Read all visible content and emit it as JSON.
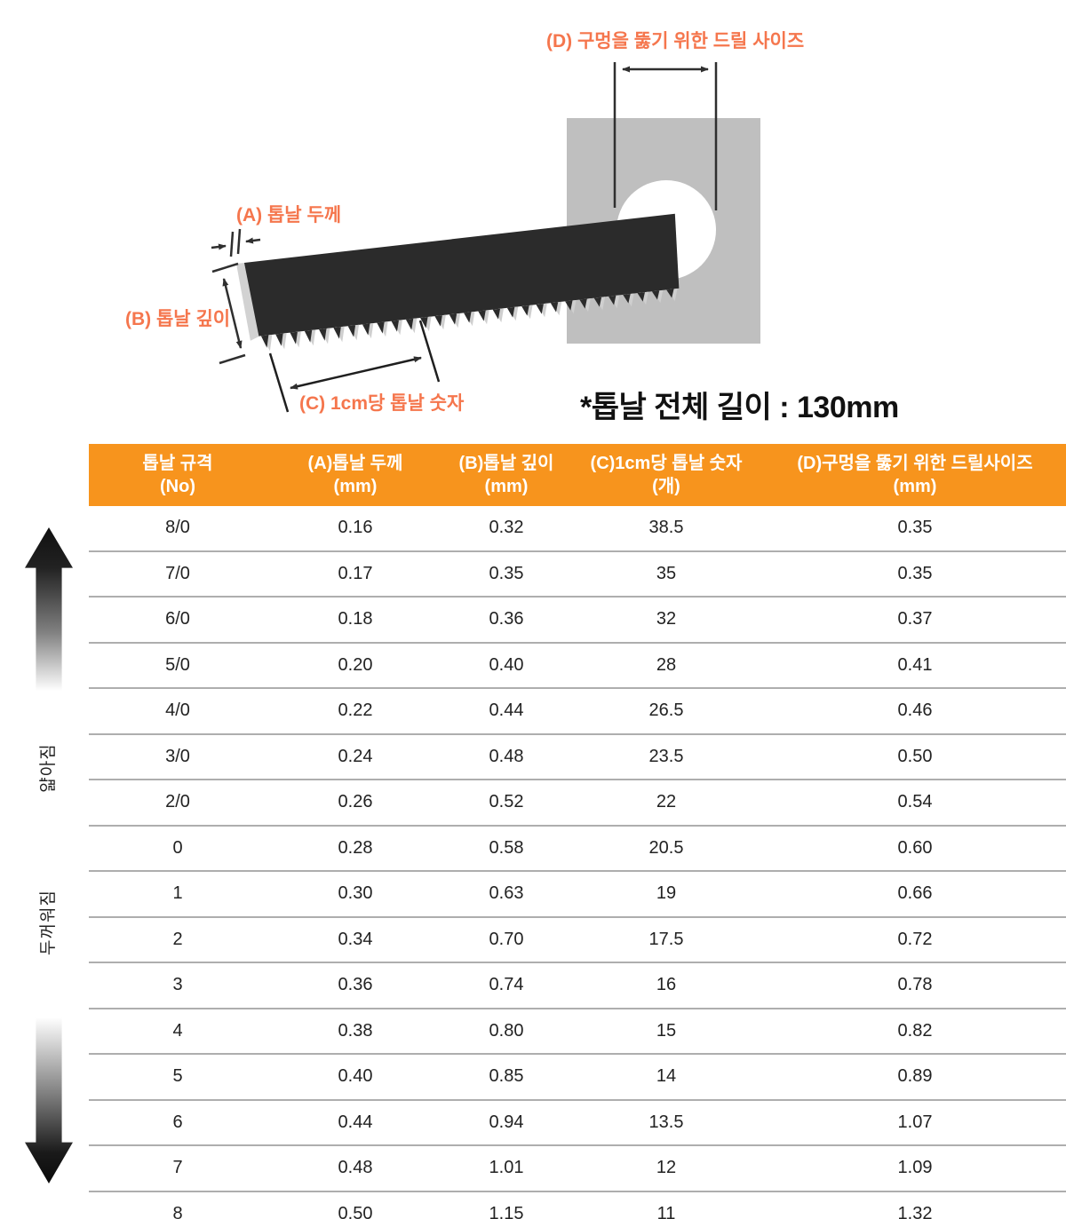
{
  "diagram": {
    "labels": {
      "a": "(A) 톱날 두께",
      "b": "(B) 톱날 깊이",
      "c": "(C) 1cm당 톱날 숫자",
      "d": "(D) 구멍을 뚫기 위한 드릴 사이즈"
    },
    "total_length_note": "*톱날 전체 길이 : 130mm"
  },
  "side_labels": {
    "thinner": "얇아짐",
    "thicker": "두꺼워짐"
  },
  "colors": {
    "header_orange": "#f7941d",
    "label_coral": "#f5764d",
    "row_line": "#aeaeae",
    "blade_dark": "#2b2b2b",
    "plate_gray": "#bfbfbf"
  },
  "table": {
    "columns": [
      {
        "label": "톱날 규격",
        "unit": "(No)"
      },
      {
        "label": "(A)톱날 두께",
        "unit": "(mm)"
      },
      {
        "label": "(B)톱날 깊이",
        "unit": "(mm)"
      },
      {
        "label": "(C)1cm당 톱날 숫자",
        "unit": "(개)"
      },
      {
        "label": "(D)구멍을 뚫기 위한 드릴사이즈",
        "unit": "(mm)"
      }
    ],
    "rows": [
      [
        "8/0",
        "0.16",
        "0.32",
        "38.5",
        "0.35"
      ],
      [
        "7/0",
        "0.17",
        "0.35",
        "35",
        "0.35"
      ],
      [
        "6/0",
        "0.18",
        "0.36",
        "32",
        "0.37"
      ],
      [
        "5/0",
        "0.20",
        "0.40",
        "28",
        "0.41"
      ],
      [
        "4/0",
        "0.22",
        "0.44",
        "26.5",
        "0.46"
      ],
      [
        "3/0",
        "0.24",
        "0.48",
        "23.5",
        "0.50"
      ],
      [
        "2/0",
        "0.26",
        "0.52",
        "22",
        "0.54"
      ],
      [
        "0",
        "0.28",
        "0.58",
        "20.5",
        "0.60"
      ],
      [
        "1",
        "0.30",
        "0.63",
        "19",
        "0.66"
      ],
      [
        "2",
        "0.34",
        "0.70",
        "17.5",
        "0.72"
      ],
      [
        "3",
        "0.36",
        "0.74",
        "16",
        "0.78"
      ],
      [
        "4",
        "0.38",
        "0.80",
        "15",
        "0.82"
      ],
      [
        "5",
        "0.40",
        "0.85",
        "14",
        "0.89"
      ],
      [
        "6",
        "0.44",
        "0.94",
        "13.5",
        "1.07"
      ],
      [
        "7",
        "0.48",
        "1.01",
        "12",
        "1.09"
      ],
      [
        "8",
        "0.50",
        "1.15",
        "11",
        "1.32"
      ]
    ]
  }
}
